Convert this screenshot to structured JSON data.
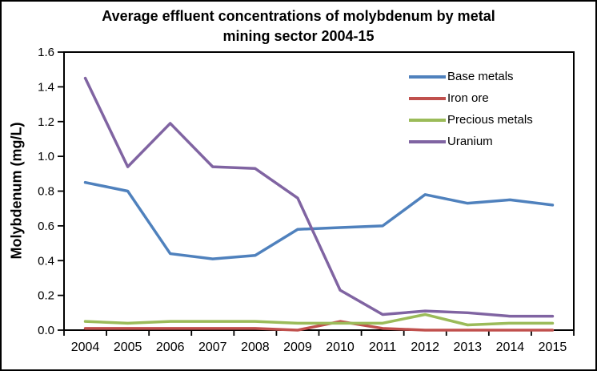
{
  "figure": {
    "title_lines": [
      "Average effluent concentrations of molybdenum by metal",
      "mining sector 2004-15"
    ]
  },
  "chart_data": {
    "type": "line",
    "title": "Average effluent concentrations of molybdenum by metal mining sector 2004-15",
    "xlabel": "",
    "ylabel": "Molybdenum (mg/L)",
    "categories": [
      "2004",
      "2005",
      "2006",
      "2007",
      "2008",
      "2009",
      "2010",
      "2011",
      "2012",
      "2013",
      "2014",
      "2015"
    ],
    "ylim": [
      0,
      1.6
    ],
    "y_tick_step": 0.2,
    "y_tick_labels": [
      "0.0",
      "0.2",
      "0.4",
      "0.6",
      "0.8",
      "1.0",
      "1.2",
      "1.4",
      "1.6"
    ],
    "grid": false,
    "legend_position": "inside-top-right",
    "axis_color": "#000000",
    "text_color": "#000000",
    "background_color": "#FFFFFF",
    "series": [
      {
        "name": "Base metals",
        "color": "#4F81BD",
        "values": [
          0.85,
          0.8,
          0.44,
          0.41,
          0.43,
          0.58,
          0.59,
          0.6,
          0.78,
          0.73,
          0.75,
          0.72
        ]
      },
      {
        "name": "Iron ore",
        "color": "#C0504D",
        "values": [
          0.01,
          0.01,
          0.01,
          0.01,
          0.01,
          0.0,
          0.05,
          0.01,
          0.0,
          0.0,
          0.0,
          0.0
        ]
      },
      {
        "name": "Precious metals",
        "color": "#9BBB59",
        "values": [
          0.05,
          0.04,
          0.05,
          0.05,
          0.05,
          0.04,
          0.04,
          0.04,
          0.09,
          0.03,
          0.04,
          0.04
        ]
      },
      {
        "name": "Uranium",
        "color": "#8064A2",
        "values": [
          1.45,
          0.94,
          1.19,
          0.94,
          0.93,
          0.76,
          0.23,
          0.09,
          0.11,
          0.1,
          0.08,
          0.08
        ]
      }
    ]
  }
}
